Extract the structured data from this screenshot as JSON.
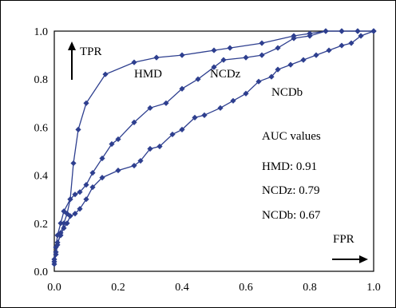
{
  "chart_data": {
    "type": "line",
    "title": "",
    "xlabel": "",
    "ylabel": "",
    "xlim": [
      0,
      1
    ],
    "ylim": [
      0,
      1
    ],
    "x_ticks": [
      "0.0",
      "0.2",
      "0.4",
      "0.6",
      "0.8",
      "1.0"
    ],
    "y_ticks": [
      "0.0",
      "0.2",
      "0.4",
      "0.6",
      "0.8",
      "1.0"
    ],
    "grid": "horizontal",
    "series_color": "#2e3f8f",
    "axis_annotations": {
      "y_arrow_label": "TPR",
      "x_arrow_label": "FPR"
    },
    "auc_box": {
      "heading": "AUC values",
      "entries": [
        "HMD: 0.91",
        "NCDz: 0.79",
        "NCDb: 0.67"
      ]
    },
    "series": [
      {
        "name": "HMD",
        "points": [
          [
            0.0,
            0.03
          ],
          [
            0.005,
            0.07
          ],
          [
            0.01,
            0.11
          ],
          [
            0.02,
            0.16
          ],
          [
            0.03,
            0.2
          ],
          [
            0.04,
            0.24
          ],
          [
            0.05,
            0.3
          ],
          [
            0.06,
            0.45
          ],
          [
            0.075,
            0.59
          ],
          [
            0.1,
            0.7
          ],
          [
            0.16,
            0.82
          ],
          [
            0.25,
            0.87
          ],
          [
            0.32,
            0.89
          ],
          [
            0.4,
            0.9
          ],
          [
            0.5,
            0.92
          ],
          [
            0.55,
            0.93
          ],
          [
            0.65,
            0.95
          ],
          [
            0.75,
            0.98
          ],
          [
            0.8,
            0.99
          ],
          [
            0.85,
            1.0
          ],
          [
            0.9,
            1.0
          ],
          [
            0.95,
            1.0
          ],
          [
            1.0,
            1.0
          ]
        ]
      },
      {
        "name": "NCDz",
        "points": [
          [
            0.0,
            0.05
          ],
          [
            0.005,
            0.1
          ],
          [
            0.01,
            0.15
          ],
          [
            0.02,
            0.2
          ],
          [
            0.03,
            0.25
          ],
          [
            0.05,
            0.3
          ],
          [
            0.065,
            0.32
          ],
          [
            0.08,
            0.33
          ],
          [
            0.1,
            0.36
          ],
          [
            0.12,
            0.41
          ],
          [
            0.15,
            0.47
          ],
          [
            0.18,
            0.53
          ],
          [
            0.2,
            0.55
          ],
          [
            0.25,
            0.62
          ],
          [
            0.3,
            0.68
          ],
          [
            0.35,
            0.7
          ],
          [
            0.4,
            0.76
          ],
          [
            0.45,
            0.8
          ],
          [
            0.5,
            0.85
          ],
          [
            0.53,
            0.88
          ],
          [
            0.6,
            0.89
          ],
          [
            0.65,
            0.9
          ],
          [
            0.7,
            0.93
          ],
          [
            0.75,
            0.97
          ],
          [
            0.8,
            0.98
          ],
          [
            0.85,
            1.0
          ],
          [
            0.9,
            1.0
          ],
          [
            0.95,
            1.0
          ],
          [
            1.0,
            1.0
          ]
        ]
      },
      {
        "name": "NCDb",
        "points": [
          [
            0.0,
            0.04
          ],
          [
            0.005,
            0.08
          ],
          [
            0.01,
            0.12
          ],
          [
            0.02,
            0.15
          ],
          [
            0.03,
            0.18
          ],
          [
            0.04,
            0.2
          ],
          [
            0.05,
            0.23
          ],
          [
            0.065,
            0.24
          ],
          [
            0.08,
            0.26
          ],
          [
            0.1,
            0.3
          ],
          [
            0.12,
            0.35
          ],
          [
            0.15,
            0.39
          ],
          [
            0.2,
            0.42
          ],
          [
            0.25,
            0.44
          ],
          [
            0.27,
            0.46
          ],
          [
            0.3,
            0.51
          ],
          [
            0.33,
            0.52
          ],
          [
            0.37,
            0.57
          ],
          [
            0.4,
            0.59
          ],
          [
            0.44,
            0.64
          ],
          [
            0.47,
            0.65
          ],
          [
            0.52,
            0.68
          ],
          [
            0.56,
            0.71
          ],
          [
            0.6,
            0.74
          ],
          [
            0.64,
            0.79
          ],
          [
            0.68,
            0.81
          ],
          [
            0.7,
            0.84
          ],
          [
            0.74,
            0.86
          ],
          [
            0.78,
            0.88
          ],
          [
            0.82,
            0.9
          ],
          [
            0.86,
            0.92
          ],
          [
            0.9,
            0.94
          ],
          [
            0.93,
            0.95
          ],
          [
            0.96,
            0.98
          ],
          [
            1.0,
            1.0
          ]
        ]
      }
    ]
  }
}
